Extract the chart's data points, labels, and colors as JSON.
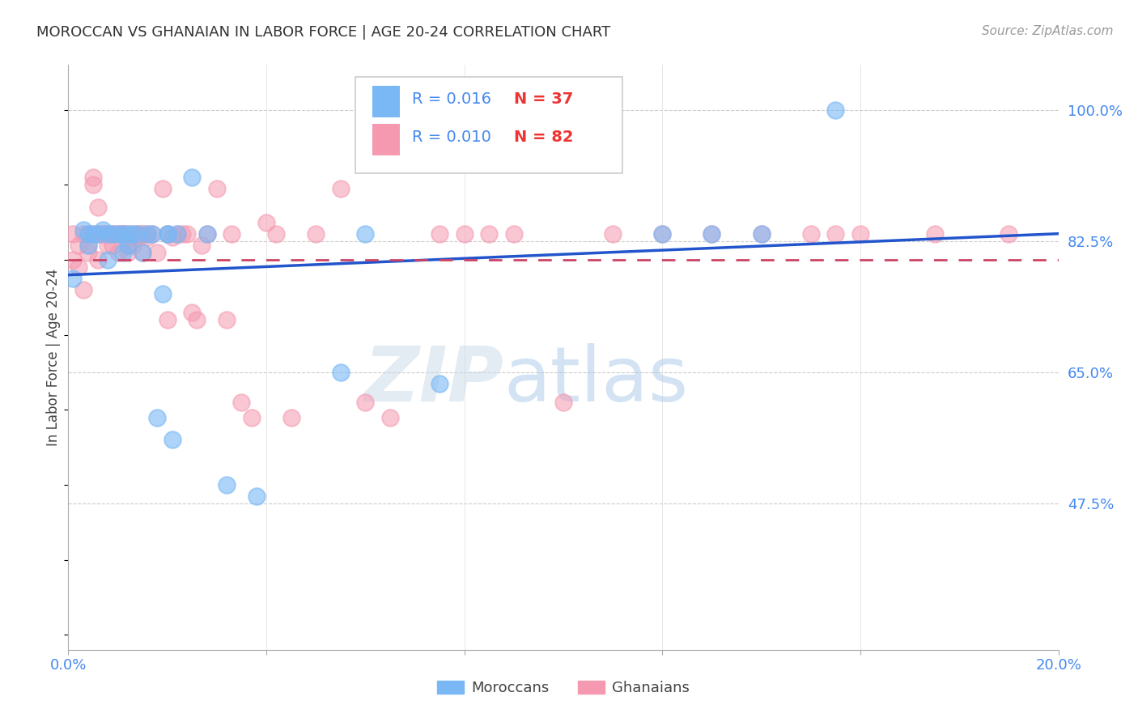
{
  "title": "MOROCCAN VS GHANAIAN IN LABOR FORCE | AGE 20-24 CORRELATION CHART",
  "source": "Source: ZipAtlas.com",
  "ylabel": "In Labor Force | Age 20-24",
  "xlim": [
    0.0,
    0.2
  ],
  "ylim": [
    0.28,
    1.06
  ],
  "xticks": [
    0.0,
    0.04,
    0.08,
    0.12,
    0.16,
    0.2
  ],
  "xtick_labels": [
    "0.0%",
    "",
    "",
    "",
    "",
    "20.0%"
  ],
  "ytick_positions": [
    0.475,
    0.65,
    0.825,
    1.0
  ],
  "ytick_labels": [
    "47.5%",
    "65.0%",
    "82.5%",
    "100.0%"
  ],
  "blue_color": "#7ab8f5",
  "pink_color": "#f599b0",
  "trend_blue_color": "#2255cc",
  "trend_pink_color": "#cc4466",
  "watermark_zip": "ZIP",
  "watermark_atlas": "atlas",
  "blue_scatter_x": [
    0.001,
    0.003,
    0.004,
    0.004,
    0.005,
    0.006,
    0.007,
    0.008,
    0.008,
    0.009,
    0.01,
    0.011,
    0.011,
    0.012,
    0.012,
    0.013,
    0.014,
    0.015,
    0.016,
    0.017,
    0.018,
    0.019,
    0.02,
    0.02,
    0.021,
    0.022,
    0.025,
    0.028,
    0.032,
    0.038,
    0.055,
    0.06,
    0.075,
    0.12,
    0.13,
    0.14,
    0.155
  ],
  "blue_scatter_y": [
    0.775,
    0.84,
    0.835,
    0.82,
    0.835,
    0.835,
    0.84,
    0.835,
    0.8,
    0.835,
    0.835,
    0.835,
    0.81,
    0.835,
    0.82,
    0.835,
    0.835,
    0.81,
    0.835,
    0.835,
    0.59,
    0.755,
    0.835,
    0.835,
    0.56,
    0.835,
    0.91,
    0.835,
    0.5,
    0.485,
    0.65,
    0.835,
    0.635,
    0.835,
    0.835,
    0.835,
    1.0
  ],
  "pink_scatter_x": [
    0.001,
    0.001,
    0.002,
    0.002,
    0.003,
    0.003,
    0.004,
    0.004,
    0.004,
    0.005,
    0.005,
    0.005,
    0.006,
    0.006,
    0.006,
    0.007,
    0.007,
    0.007,
    0.008,
    0.008,
    0.009,
    0.009,
    0.009,
    0.01,
    0.01,
    0.01,
    0.011,
    0.011,
    0.011,
    0.012,
    0.012,
    0.012,
    0.013,
    0.013,
    0.013,
    0.014,
    0.014,
    0.014,
    0.015,
    0.015,
    0.015,
    0.016,
    0.016,
    0.017,
    0.018,
    0.019,
    0.02,
    0.02,
    0.021,
    0.022,
    0.023,
    0.024,
    0.025,
    0.026,
    0.027,
    0.028,
    0.03,
    0.032,
    0.033,
    0.035,
    0.037,
    0.04,
    0.042,
    0.045,
    0.05,
    0.055,
    0.06,
    0.065,
    0.075,
    0.08,
    0.085,
    0.09,
    0.1,
    0.11,
    0.12,
    0.13,
    0.14,
    0.15,
    0.155,
    0.16,
    0.175,
    0.19
  ],
  "pink_scatter_y": [
    0.835,
    0.8,
    0.82,
    0.79,
    0.76,
    0.835,
    0.835,
    0.82,
    0.81,
    0.91,
    0.9,
    0.835,
    0.835,
    0.8,
    0.87,
    0.835,
    0.835,
    0.835,
    0.835,
    0.82,
    0.835,
    0.835,
    0.82,
    0.835,
    0.81,
    0.835,
    0.835,
    0.835,
    0.835,
    0.835,
    0.82,
    0.81,
    0.835,
    0.83,
    0.82,
    0.835,
    0.83,
    0.835,
    0.835,
    0.81,
    0.835,
    0.83,
    0.835,
    0.835,
    0.81,
    0.895,
    0.835,
    0.72,
    0.83,
    0.835,
    0.835,
    0.835,
    0.73,
    0.72,
    0.82,
    0.835,
    0.895,
    0.72,
    0.835,
    0.61,
    0.59,
    0.85,
    0.835,
    0.59,
    0.835,
    0.895,
    0.61,
    0.59,
    0.835,
    0.835,
    0.835,
    0.835,
    0.61,
    0.835,
    0.835,
    0.835,
    0.835,
    0.835,
    0.835,
    0.835,
    0.835,
    0.835
  ],
  "trend_blue_x0": 0.0,
  "trend_blue_x1": 0.2,
  "trend_blue_y0": 0.78,
  "trend_blue_y1": 0.835,
  "trend_pink_x0": 0.0,
  "trend_pink_x1": 0.2,
  "trend_pink_y0": 0.8,
  "trend_pink_y1": 0.8
}
